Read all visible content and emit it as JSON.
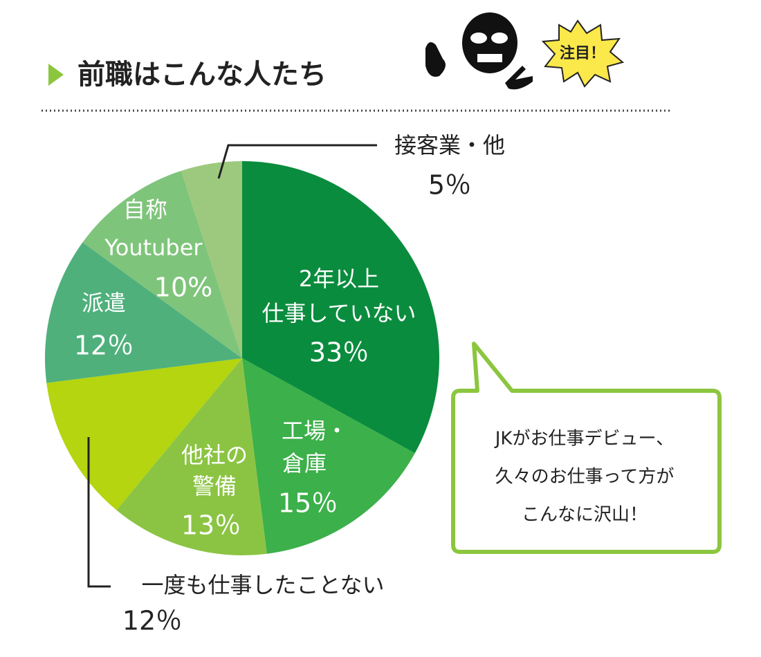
{
  "header": {
    "title": "前職はこんな人たち",
    "badge": "注目！"
  },
  "chart_data": {
    "type": "pie",
    "categories": [
      [
        "2年以上",
        "仕事していない"
      ],
      [
        "工場・",
        "倉庫"
      ],
      [
        "他社の",
        "警備"
      ],
      [
        "一度も仕事したことない"
      ],
      [
        "派遣"
      ],
      [
        "自称",
        "Youtuber"
      ],
      [
        "接客業・他"
      ]
    ],
    "values": [
      33,
      15,
      13,
      12,
      12,
      10,
      5
    ],
    "value_labels": [
      "33％",
      "15％",
      "13％",
      "12％",
      "12％",
      "10%",
      "5％"
    ],
    "colors": [
      "#0a8c3e",
      "#3cb04a",
      "#8bc443",
      "#b4d50f",
      "#4fb07c",
      "#7fc47b",
      "#9dc97f"
    ]
  },
  "callout": {
    "lines": [
      "JKがお仕事デビュー、",
      "久々のお仕事って方が",
      "こんなに沢山！"
    ]
  }
}
